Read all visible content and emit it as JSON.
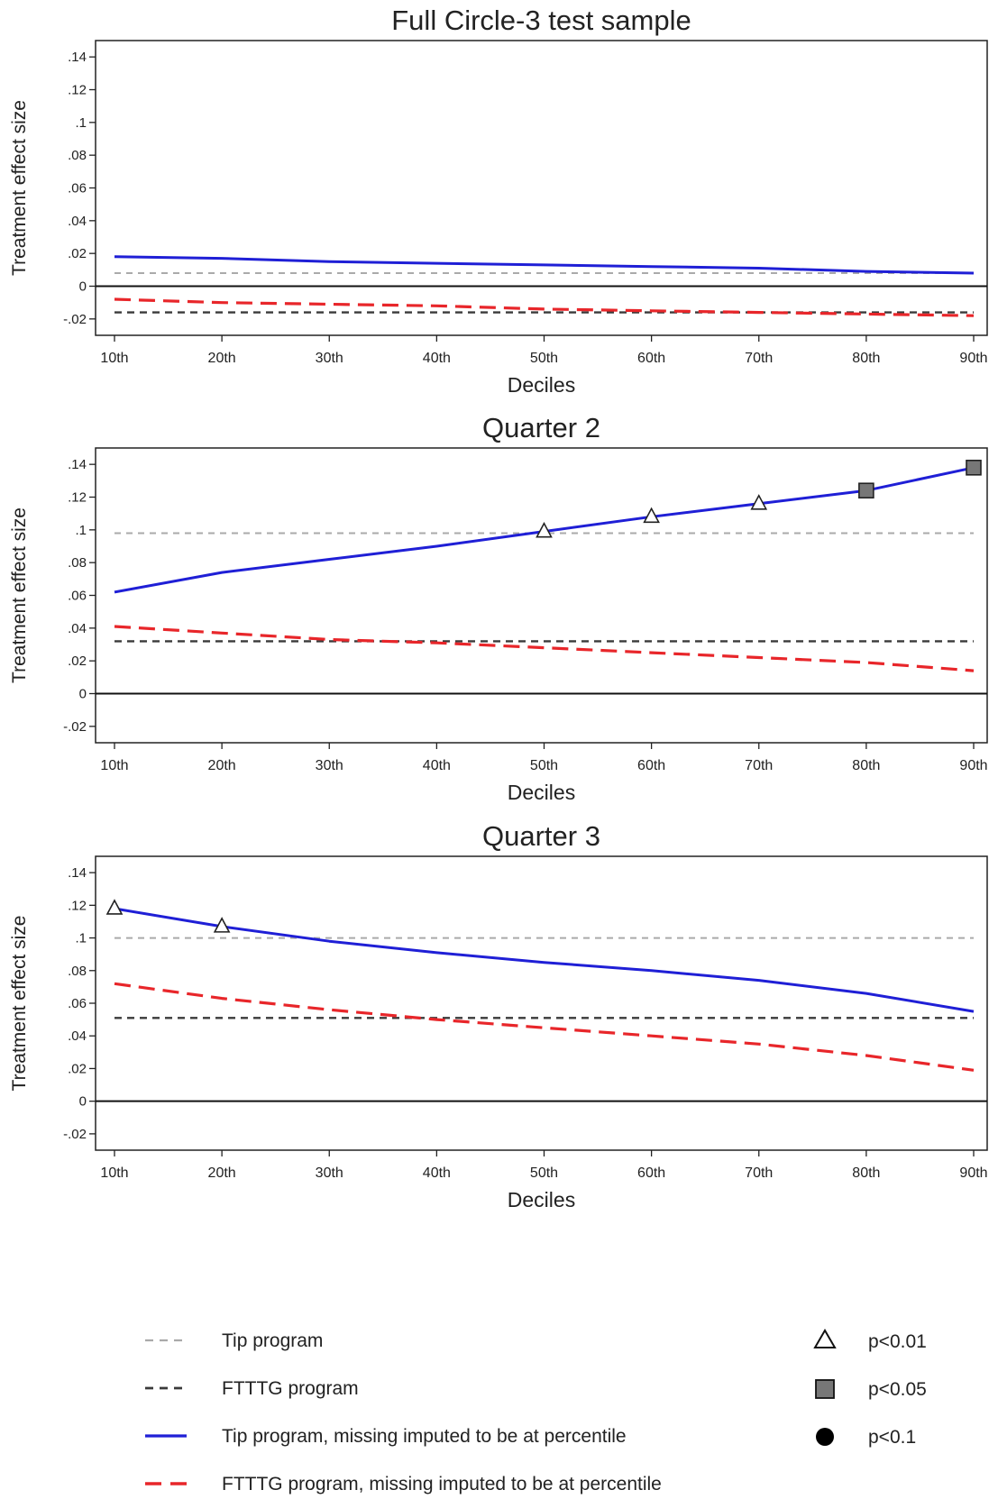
{
  "chart_data": [
    {
      "type": "line",
      "title": "Full Circle-3 test sample",
      "xlabel": "Deciles",
      "ylabel": "Treatment effect size",
      "categories": [
        "10th",
        "20th",
        "30th",
        "40th",
        "50th",
        "60th",
        "70th",
        "80th",
        "90th"
      ],
      "ylim": [
        -0.03,
        0.15
      ],
      "yticks": [
        {
          "value": -0.02,
          "label": "-.02"
        },
        {
          "value": 0,
          "label": "0"
        },
        {
          "value": 0.02,
          "label": ".02"
        },
        {
          "value": 0.04,
          "label": ".04"
        },
        {
          "value": 0.06,
          "label": ".06"
        },
        {
          "value": 0.08,
          "label": ".08"
        },
        {
          "value": 0.1,
          "label": ".1"
        },
        {
          "value": 0.12,
          "label": ".12"
        },
        {
          "value": 0.14,
          "label": ".14"
        }
      ],
      "grid": false,
      "series": [
        {
          "key": "tip_const",
          "values": [
            0.008,
            0.008,
            0.008,
            0.008,
            0.008,
            0.008,
            0.008,
            0.008,
            0.008
          ]
        },
        {
          "key": "ftttg_const",
          "values": [
            -0.016,
            -0.016,
            -0.016,
            -0.016,
            -0.016,
            -0.016,
            -0.016,
            -0.016,
            -0.016
          ]
        },
        {
          "key": "tip_pct",
          "values": [
            0.018,
            0.017,
            0.015,
            0.014,
            0.013,
            0.012,
            0.011,
            0.009,
            0.008
          ],
          "significance": [
            null,
            null,
            null,
            null,
            null,
            null,
            null,
            null,
            null
          ]
        },
        {
          "key": "ftttg_pct",
          "values": [
            -0.008,
            -0.01,
            -0.011,
            -0.012,
            -0.014,
            -0.015,
            -0.016,
            -0.017,
            -0.018
          ],
          "significance": [
            null,
            null,
            null,
            null,
            null,
            null,
            null,
            null,
            null
          ]
        }
      ]
    },
    {
      "type": "line",
      "title": "Quarter 2",
      "xlabel": "Deciles",
      "ylabel": "Treatment effect size",
      "categories": [
        "10th",
        "20th",
        "30th",
        "40th",
        "50th",
        "60th",
        "70th",
        "80th",
        "90th"
      ],
      "ylim": [
        -0.03,
        0.15
      ],
      "yticks": [
        {
          "value": -0.02,
          "label": "-.02"
        },
        {
          "value": 0,
          "label": "0"
        },
        {
          "value": 0.02,
          "label": ".02"
        },
        {
          "value": 0.04,
          "label": ".04"
        },
        {
          "value": 0.06,
          "label": ".06"
        },
        {
          "value": 0.08,
          "label": ".08"
        },
        {
          "value": 0.1,
          "label": ".1"
        },
        {
          "value": 0.12,
          "label": ".12"
        },
        {
          "value": 0.14,
          "label": ".14"
        }
      ],
      "grid": false,
      "series": [
        {
          "key": "tip_const",
          "values": [
            0.098,
            0.098,
            0.098,
            0.098,
            0.098,
            0.098,
            0.098,
            0.098,
            0.098
          ]
        },
        {
          "key": "ftttg_const",
          "values": [
            0.032,
            0.032,
            0.032,
            0.032,
            0.032,
            0.032,
            0.032,
            0.032,
            0.032
          ]
        },
        {
          "key": "tip_pct",
          "values": [
            0.062,
            0.074,
            0.082,
            0.09,
            0.099,
            0.108,
            0.116,
            0.124,
            0.138
          ],
          "significance": [
            null,
            null,
            null,
            null,
            "p01",
            "p01",
            "p01",
            "p05",
            "p05"
          ]
        },
        {
          "key": "ftttg_pct",
          "values": [
            0.041,
            0.037,
            0.033,
            0.031,
            0.028,
            0.025,
            0.022,
            0.019,
            0.014
          ],
          "significance": [
            null,
            null,
            null,
            null,
            null,
            null,
            null,
            null,
            null
          ]
        }
      ]
    },
    {
      "type": "line",
      "title": "Quarter 3",
      "xlabel": "Deciles",
      "ylabel": "Treatment effect size",
      "categories": [
        "10th",
        "20th",
        "30th",
        "40th",
        "50th",
        "60th",
        "70th",
        "80th",
        "90th"
      ],
      "ylim": [
        -0.03,
        0.15
      ],
      "yticks": [
        {
          "value": -0.02,
          "label": "-.02"
        },
        {
          "value": 0,
          "label": "0"
        },
        {
          "value": 0.02,
          "label": ".02"
        },
        {
          "value": 0.04,
          "label": ".04"
        },
        {
          "value": 0.06,
          "label": ".06"
        },
        {
          "value": 0.08,
          "label": ".08"
        },
        {
          "value": 0.1,
          "label": ".1"
        },
        {
          "value": 0.12,
          "label": ".12"
        },
        {
          "value": 0.14,
          "label": ".14"
        }
      ],
      "grid": false,
      "series": [
        {
          "key": "tip_const",
          "values": [
            0.1,
            0.1,
            0.1,
            0.1,
            0.1,
            0.1,
            0.1,
            0.1,
            0.1
          ]
        },
        {
          "key": "ftttg_const",
          "values": [
            0.051,
            0.051,
            0.051,
            0.051,
            0.051,
            0.051,
            0.051,
            0.051,
            0.051
          ]
        },
        {
          "key": "tip_pct",
          "values": [
            0.118,
            0.107,
            0.098,
            0.091,
            0.085,
            0.08,
            0.074,
            0.066,
            0.055
          ],
          "significance": [
            "p01",
            "p01",
            null,
            null,
            null,
            null,
            null,
            null,
            null
          ]
        },
        {
          "key": "ftttg_pct",
          "values": [
            0.072,
            0.063,
            0.056,
            0.05,
            0.045,
            0.04,
            0.035,
            0.028,
            0.019
          ],
          "significance": [
            null,
            null,
            null,
            null,
            null,
            null,
            null,
            null,
            null
          ]
        }
      ]
    }
  ],
  "legend": {
    "placement": "bottom",
    "lines": [
      {
        "key": "tip_const",
        "label": "Tip program",
        "color": "#aaaaaa",
        "style": "dashed-fine"
      },
      {
        "key": "ftttg_const",
        "label": "FTTTG program",
        "color": "#3a3a3a",
        "style": "dashed"
      },
      {
        "key": "tip_pct",
        "label": "Tip program, missing imputed to be at percentile",
        "color": "#1f1fd6",
        "style": "solid"
      },
      {
        "key": "ftttg_pct",
        "label": "FTTTG program, missing imputed to be at percentile",
        "color": "#e8262a",
        "style": "dashed-long"
      }
    ],
    "markers": [
      {
        "key": "p01",
        "label": "p<0.01",
        "shape": "triangle"
      },
      {
        "key": "p05",
        "label": "p<0.05",
        "shape": "square"
      },
      {
        "key": "p10",
        "label": "p<0.1",
        "shape": "circle"
      }
    ]
  }
}
